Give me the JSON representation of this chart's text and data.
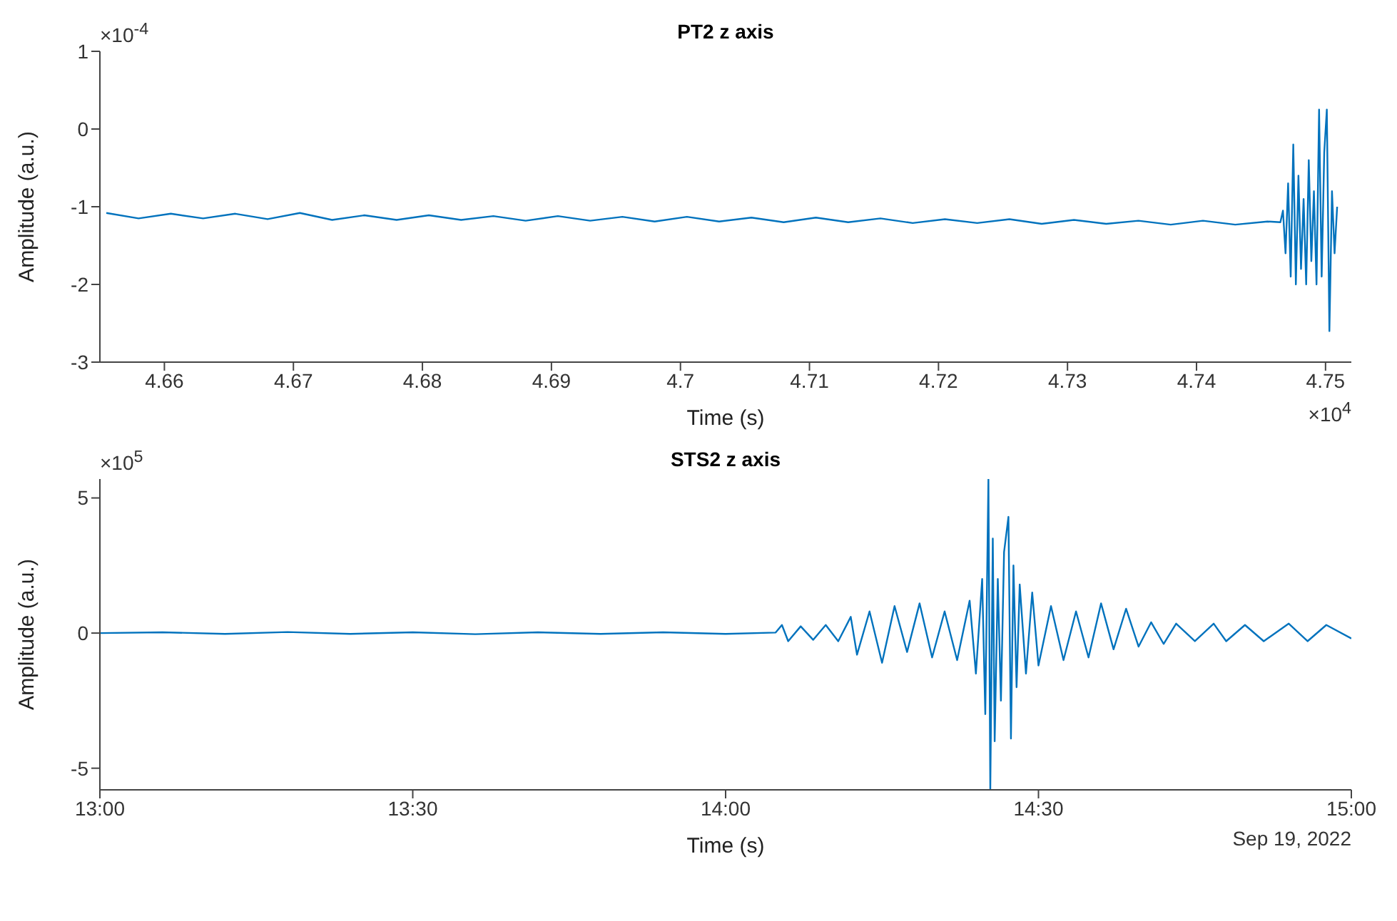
{
  "chart_data": [
    {
      "type": "line",
      "title": "PT2 z axis",
      "xlabel": "Time (s)",
      "ylabel": "Amplitude (a.u.)",
      "annotations": [
        "×10$^{-4}$",
        "×10$^{4}$"
      ],
      "xlim": [
        4.655,
        4.752
      ],
      "xticks": [
        4.66,
        4.67,
        4.68,
        4.69,
        4.7,
        4.71,
        4.72,
        4.73,
        4.74,
        4.75
      ],
      "ylim": [
        -3,
        1
      ],
      "yticks": [
        -3,
        -2,
        -1,
        0,
        1
      ],
      "x": [
        4.6555,
        4.658,
        4.6605,
        4.663,
        4.6655,
        4.668,
        4.6705,
        4.673,
        4.6755,
        4.678,
        4.6805,
        4.683,
        4.6855,
        4.688,
        4.6905,
        4.693,
        4.6955,
        4.698,
        4.7005,
        4.703,
        4.7055,
        4.708,
        4.7105,
        4.713,
        4.7155,
        4.718,
        4.7205,
        4.723,
        4.7255,
        4.728,
        4.7305,
        4.733,
        4.7355,
        4.738,
        4.7405,
        4.743,
        4.7455,
        4.7465,
        4.7467,
        4.7469,
        4.7471,
        4.7473,
        4.7475,
        4.7477,
        4.7479,
        4.7481,
        4.7483,
        4.7485,
        4.7487,
        4.7489,
        4.7491,
        4.7493,
        4.7495,
        4.7497,
        4.7499,
        4.7501,
        4.7503,
        4.7505,
        4.7507,
        4.7509
      ],
      "series": [
        {
          "color": "#0072bd",
          "values": [
            -1.08,
            -1.15,
            -1.09,
            -1.15,
            -1.09,
            -1.16,
            -1.08,
            -1.17,
            -1.11,
            -1.17,
            -1.11,
            -1.17,
            -1.12,
            -1.18,
            -1.12,
            -1.18,
            -1.13,
            -1.19,
            -1.13,
            -1.19,
            -1.14,
            -1.2,
            -1.14,
            -1.2,
            -1.15,
            -1.21,
            -1.16,
            -1.21,
            -1.16,
            -1.22,
            -1.17,
            -1.22,
            -1.18,
            -1.23,
            -1.18,
            -1.23,
            -1.19,
            -1.2,
            -1.05,
            -1.6,
            -0.7,
            -1.9,
            -0.2,
            -2.0,
            -0.6,
            -1.8,
            -0.9,
            -2.0,
            -0.4,
            -1.7,
            -0.8,
            -2.0,
            0.25,
            -1.9,
            -0.3,
            0.25,
            -2.6,
            -0.8,
            -1.6,
            -1.0
          ]
        }
      ]
    },
    {
      "type": "line",
      "title": "STS2 z axis",
      "xlabel": "Time (s)",
      "ylabel": "Amplitude (a.u.)",
      "annotations": [
        "×10$^{5}$",
        "Sep 19, 2022"
      ],
      "xlim": [
        13,
        15
      ],
      "xticks": [
        {
          "value": 13,
          "label": "13:00"
        },
        {
          "value": 13.5,
          "label": "13:30"
        },
        {
          "value": 14,
          "label": "14:00"
        },
        {
          "value": 14.5,
          "label": "14:30"
        },
        {
          "value": 15,
          "label": "15:00"
        }
      ],
      "ylim": [
        -5.8,
        5.7
      ],
      "yticks": [
        -5,
        0,
        5
      ],
      "x": [
        13,
        13.1,
        13.2,
        13.3,
        13.4,
        13.5,
        13.6,
        13.7,
        13.8,
        13.9,
        14.0,
        14.08,
        14.09,
        14.1,
        14.12,
        14.14,
        14.16,
        14.18,
        14.2,
        14.21,
        14.23,
        14.25,
        14.27,
        14.29,
        14.31,
        14.33,
        14.35,
        14.37,
        14.39,
        14.4,
        14.41,
        14.415,
        14.42,
        14.423,
        14.427,
        14.43,
        14.435,
        14.44,
        14.445,
        14.452,
        14.456,
        14.46,
        14.465,
        14.47,
        14.48,
        14.49,
        14.5,
        14.52,
        14.54,
        14.56,
        14.58,
        14.6,
        14.62,
        14.64,
        14.66,
        14.68,
        14.7,
        14.72,
        14.75,
        14.78,
        14.8,
        14.83,
        14.86,
        14.9,
        14.93,
        14.96,
        15
      ],
      "series": [
        {
          "color": "#0072bd",
          "values": [
            0,
            0.03,
            -0.03,
            0.04,
            -0.03,
            0.03,
            -0.04,
            0.03,
            -0.03,
            0.03,
            -0.03,
            0.02,
            0.3,
            -0.3,
            0.25,
            -0.25,
            0.3,
            -0.3,
            0.6,
            -0.8,
            0.8,
            -1.1,
            1.0,
            -0.7,
            1.1,
            -0.9,
            0.8,
            -1.0,
            1.2,
            -1.5,
            2.0,
            -3.0,
            5.7,
            -5.8,
            3.5,
            -4.0,
            2.0,
            -2.5,
            3.0,
            4.3,
            -3.9,
            2.5,
            -2.0,
            1.8,
            -1.5,
            1.5,
            -1.2,
            1.0,
            -1.0,
            0.8,
            -0.9,
            1.1,
            -0.6,
            0.9,
            -0.5,
            0.4,
            -0.4,
            0.35,
            -0.3,
            0.35,
            -0.3,
            0.3,
            -0.3,
            0.35,
            -0.3,
            0.3,
            -0.2
          ]
        }
      ]
    }
  ]
}
